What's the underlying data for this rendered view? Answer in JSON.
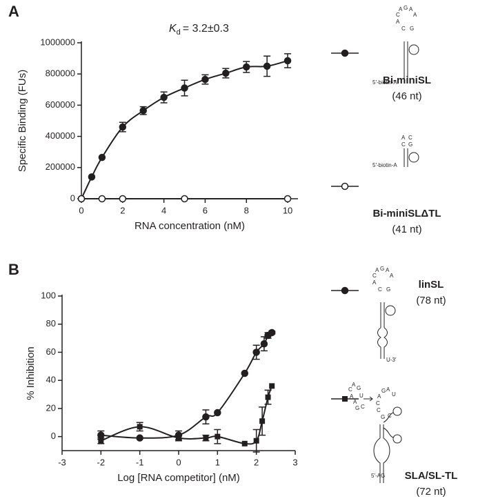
{
  "chart_data": [
    {
      "type": "scatter",
      "panel": "A",
      "xlabel": "RNA concentration (nM)",
      "ylabel": "Specific Binding (FUs)",
      "annotation": {
        "symbol": "K",
        "subscript": "d",
        "text": "= 3.2±0.3"
      },
      "xlim": [
        0,
        10.5
      ],
      "xticks": [
        0,
        2,
        4,
        6,
        8,
        10
      ],
      "ylim": [
        0,
        1000000
      ],
      "yticks": [
        0,
        200000,
        400000,
        600000,
        800000,
        1000000
      ],
      "series": [
        {
          "name": "Bi-miniSL",
          "size_label": "(46 nt)",
          "marker": "filled-circle",
          "color": "#231f20",
          "structure_labels": [
            "G",
            "A",
            "A",
            "C",
            "A",
            "A",
            "C",
            "G",
            "5′-biotin-A"
          ],
          "x": [
            0,
            0.5,
            1,
            2,
            3,
            4,
            5,
            6,
            7,
            8,
            9,
            10
          ],
          "values": [
            0,
            140000,
            265000,
            460000,
            565000,
            650000,
            710000,
            765000,
            805000,
            845000,
            850000,
            885000
          ],
          "errors": [
            0,
            0,
            0,
            30000,
            25000,
            35000,
            50000,
            30000,
            30000,
            35000,
            65000,
            45000
          ]
        },
        {
          "name": "Bi-miniSLΔTL",
          "size_label": "(41 nt)",
          "marker": "open-circle",
          "color": "#231f20",
          "structure_labels": [
            "A",
            "C",
            "C",
            "G",
            "5′-biotin-A"
          ],
          "x": [
            0,
            1,
            2,
            5,
            10
          ],
          "values": [
            0,
            0,
            0,
            0,
            0
          ],
          "errors": [
            0,
            0,
            0,
            0,
            0
          ]
        }
      ]
    },
    {
      "type": "scatter",
      "panel": "B",
      "xlabel": "Log [RNA competitor] (nM)",
      "ylabel": "% Inhibition",
      "xlim": [
        -3,
        3
      ],
      "xticks": [
        -3,
        -2,
        -1,
        0,
        1,
        2,
        3
      ],
      "ylim": [
        -10,
        100
      ],
      "yticks": [
        0,
        20,
        40,
        60,
        80,
        100
      ],
      "series": [
        {
          "name": "linSL",
          "size_label": "(78 nt)",
          "marker": "filled-circle",
          "color": "#231f20",
          "structure_labels": [
            "G",
            "A",
            "A",
            "C",
            "A",
            "A",
            "C",
            "G",
            "U-3′"
          ],
          "x": [
            -2,
            -1,
            0,
            0.7,
            1,
            1.7,
            2,
            2.2,
            2.3,
            2.4
          ],
          "values": [
            1,
            -1,
            1,
            14,
            17,
            45,
            60,
            66,
            72,
            74
          ],
          "errors": [
            3,
            0,
            3,
            5,
            0,
            0,
            5,
            5,
            2,
            1
          ]
        },
        {
          "name": "SLA/SL-TL",
          "size_label": "(72 nt)",
          "marker": "square",
          "color": "#231f20",
          "structure_labels": [
            "C",
            "A",
            "G",
            "A",
            "A",
            "U",
            "G",
            "C",
            "C",
            "A",
            "G",
            "A",
            "C",
            "G",
            "C",
            "U",
            "5′-AG"
          ],
          "x": [
            -2,
            -1,
            0,
            0.7,
            1,
            1.7,
            2,
            2.15,
            2.3,
            2.4
          ],
          "values": [
            -3,
            7,
            -1,
            -1,
            0,
            -5,
            -3,
            11,
            28,
            36
          ],
          "errors": [
            2,
            3,
            2,
            2,
            5,
            0,
            8,
            10,
            5,
            0
          ]
        }
      ]
    }
  ]
}
